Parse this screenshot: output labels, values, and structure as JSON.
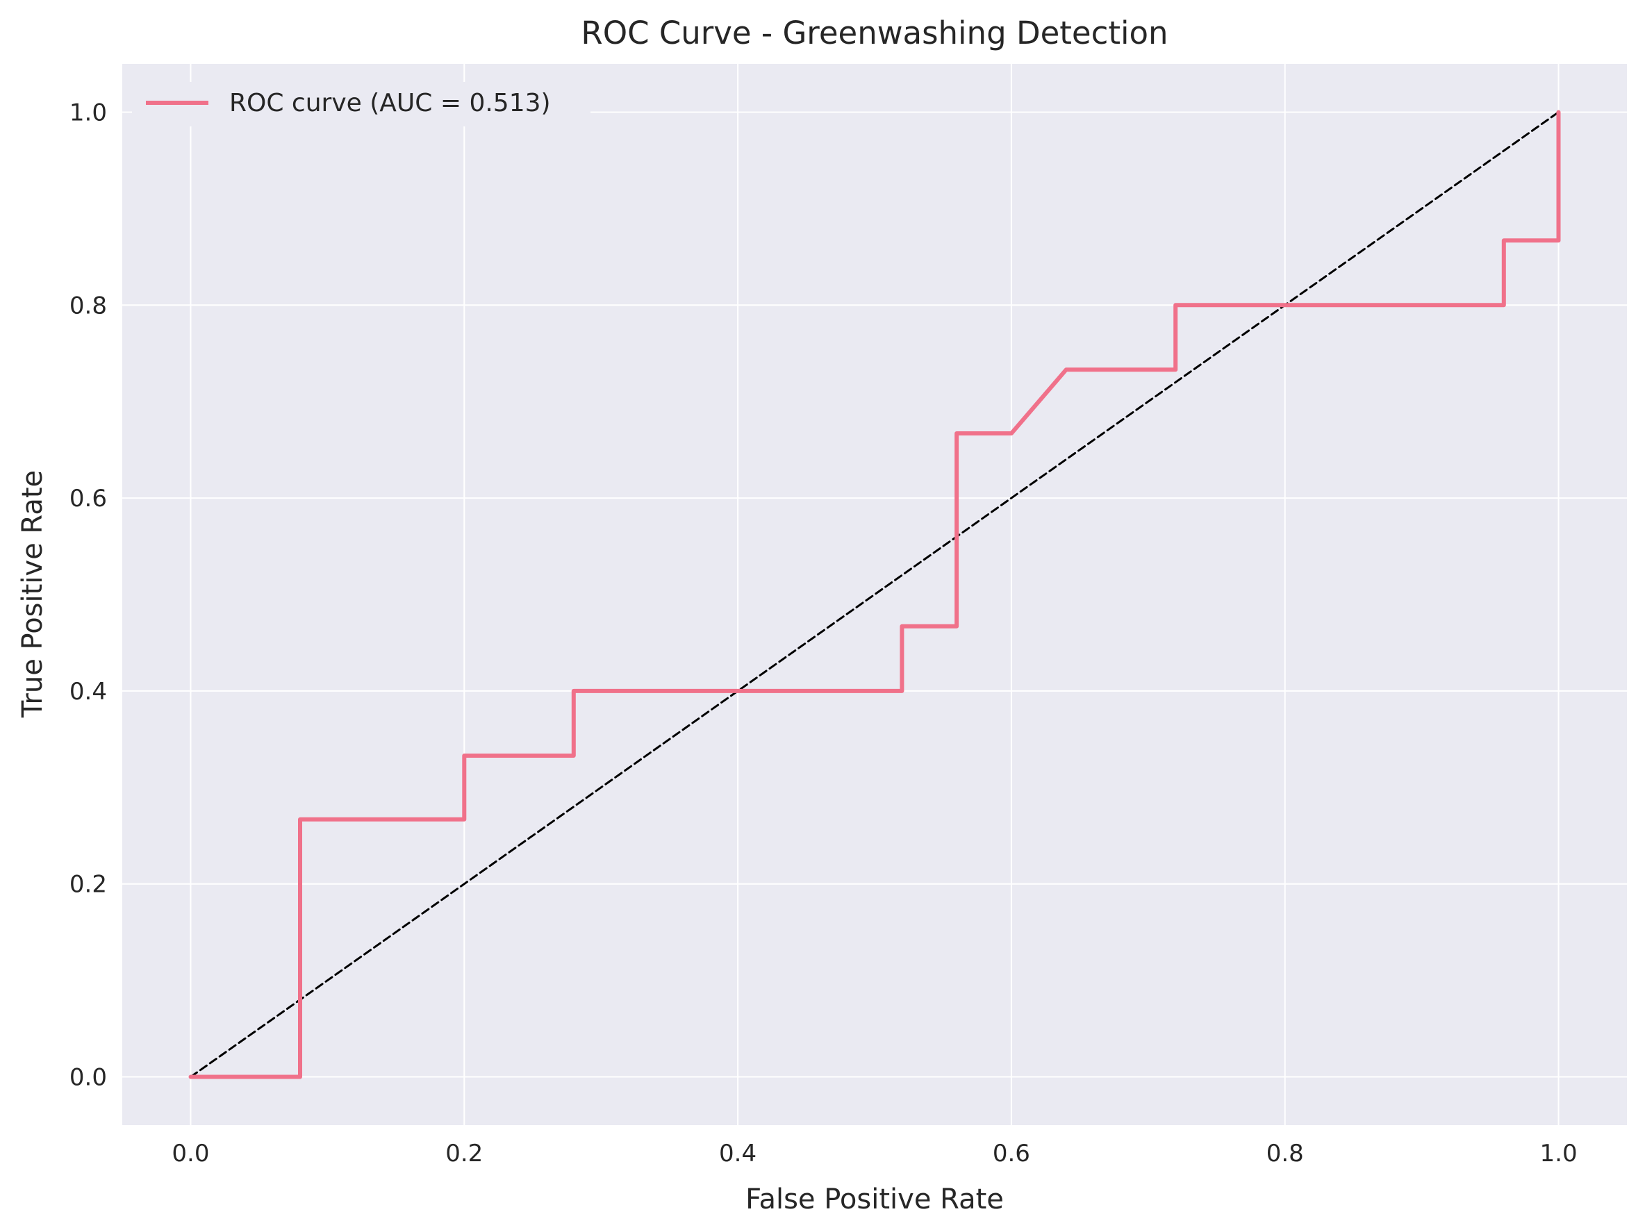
{
  "chart_data": {
    "type": "line",
    "title": "ROC Curve - Greenwashing Detection",
    "xlabel": "False Positive Rate",
    "ylabel": "True Positive Rate",
    "xlim": [
      -0.05,
      1.05
    ],
    "ylim": [
      -0.05,
      1.05
    ],
    "x_ticks": [
      0.0,
      0.2,
      0.4,
      0.6,
      0.8,
      1.0
    ],
    "y_ticks": [
      0.0,
      0.2,
      0.4,
      0.6,
      0.8,
      1.0
    ],
    "x_tick_labels": [
      "0.0",
      "0.2",
      "0.4",
      "0.6",
      "0.8",
      "1.0"
    ],
    "y_tick_labels": [
      "0.0",
      "0.2",
      "0.4",
      "0.6",
      "0.8",
      "1.0"
    ],
    "grid": true,
    "legend_position": "top-left",
    "series": [
      {
        "name": "ROC curve (AUC = 0.513)",
        "color": "#f0718a",
        "style": "solid",
        "x": [
          0.0,
          0.08,
          0.08,
          0.2,
          0.2,
          0.28,
          0.28,
          0.52,
          0.52,
          0.56,
          0.56,
          0.6,
          0.64,
          0.72,
          0.72,
          0.96,
          0.96,
          1.0,
          1.0
        ],
        "y": [
          0.0,
          0.0,
          0.267,
          0.267,
          0.333,
          0.333,
          0.4,
          0.4,
          0.467,
          0.467,
          0.667,
          0.667,
          0.733,
          0.733,
          0.8,
          0.8,
          0.867,
          0.867,
          1.0
        ]
      },
      {
        "name": "",
        "color": "#000000",
        "style": "dashed",
        "x": [
          0.0,
          1.0
        ],
        "y": [
          0.0,
          1.0
        ]
      }
    ],
    "colors": {
      "plot_background": "#eaeaf2",
      "grid": "#ffffff"
    }
  }
}
